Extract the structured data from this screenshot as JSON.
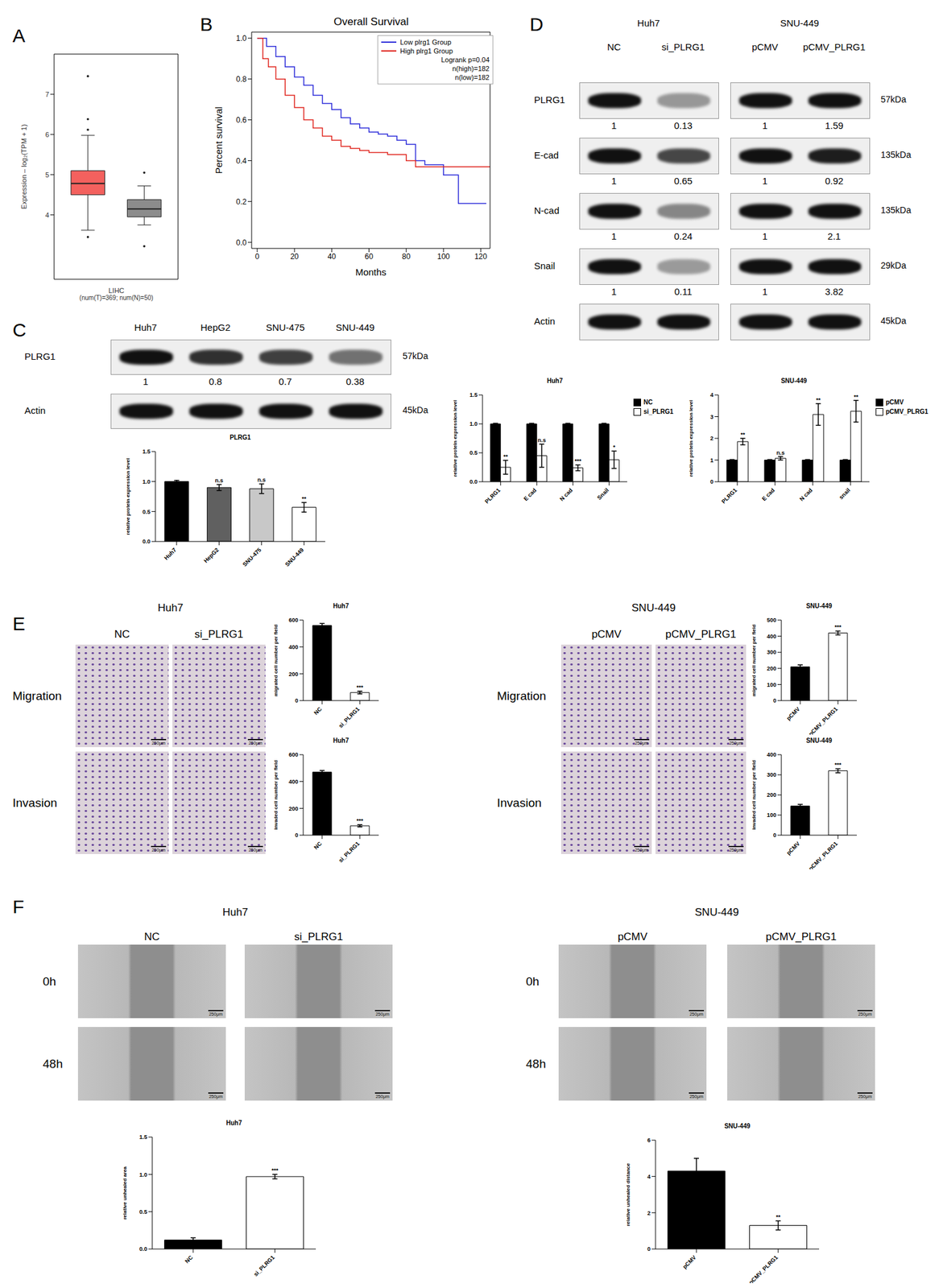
{
  "chart_data": [
    {
      "panel": "A",
      "type": "box",
      "y_label": "Expression – log₂(TPM + 1)",
      "x_label": "LIHC",
      "x_sublabel": "(num(T)=369; num(N)=50)",
      "ylim": [
        2.4,
        8.0
      ],
      "yticks": [
        4,
        5,
        6,
        7
      ],
      "tick_labels": "y",
      "boxes": [
        {
          "color": "#f4615e",
          "q1": 4.5,
          "median": 4.78,
          "q3": 5.1,
          "whisker_low": 3.62,
          "whisker_high": 5.98,
          "outliers": [
            7.45,
            6.38,
            6.12,
            3.45
          ]
        },
        {
          "color": "#8c8c8c",
          "q1": 3.95,
          "median": 4.15,
          "q3": 4.38,
          "whisker_low": 3.75,
          "whisker_high": 4.72,
          "outliers": [
            5.05,
            3.22
          ]
        }
      ]
    },
    {
      "panel": "B",
      "type": "line",
      "line_style": "step",
      "title": "Overall Survival",
      "x_label": "Months",
      "y_label": "Percent survival",
      "xlim": [
        -3,
        125
      ],
      "xticks": [
        0,
        20,
        40,
        60,
        80,
        100,
        120
      ],
      "ylim": [
        -0.03,
        1.03
      ],
      "yticks": [
        {
          "value": 0,
          "label": "0.0"
        },
        {
          "value": 0.2,
          "label": "0.2"
        },
        {
          "value": 0.4,
          "label": "0.4"
        },
        {
          "value": 0.6,
          "label": "0.6"
        },
        {
          "value": 0.8,
          "label": "0.8"
        },
        {
          "value": 1,
          "label": "1.0"
        }
      ],
      "legend": "upper right",
      "annotations": [
        "Logrank p=0.04",
        "n(high)=182",
        "n(low)=182"
      ],
      "series": [
        {
          "name": "Low plrg1 Group",
          "color": "#2b2bd9",
          "x": [
            0,
            5,
            10,
            15,
            20,
            25,
            30,
            35,
            40,
            45,
            50,
            55,
            60,
            65,
            70,
            75,
            80,
            85,
            90,
            100,
            108,
            123
          ],
          "values": [
            1,
            0.96,
            0.91,
            0.86,
            0.81,
            0.77,
            0.72,
            0.68,
            0.65,
            0.61,
            0.58,
            0.56,
            0.54,
            0.53,
            0.52,
            0.5,
            0.48,
            0.4,
            0.38,
            0.33,
            0.19,
            0.19
          ]
        },
        {
          "name": "High plrg1 Group",
          "color": "#e0261f",
          "x": [
            0,
            3,
            6,
            10,
            15,
            20,
            25,
            30,
            35,
            40,
            45,
            50,
            55,
            60,
            70,
            80,
            85,
            125
          ],
          "values": [
            1,
            0.9,
            0.86,
            0.8,
            0.72,
            0.66,
            0.6,
            0.56,
            0.52,
            0.5,
            0.47,
            0.46,
            0.45,
            0.44,
            0.43,
            0.4,
            0.37,
            0.37
          ]
        }
      ]
    },
    {
      "panel": "C",
      "type": "western_blot",
      "groups": [
        {
          "lanes": [
            "Huh7",
            "HepG2",
            "SNU-475",
            "SNU-449"
          ]
        }
      ],
      "rows": [
        {
          "label": "PLRG1",
          "kda": "57kDa",
          "values": [
            [
              1,
              0.8,
              0.7,
              0.38
            ]
          ]
        },
        {
          "label": "Actin",
          "kda": "45kDa"
        }
      ]
    },
    {
      "type": "bar",
      "title": "PLRG1",
      "y_label": "relative protein expression level",
      "categories": [
        "Huh7",
        "HepG2",
        "SNU-475",
        "SNU-449"
      ],
      "values": [
        1.0,
        0.9,
        0.88,
        0.57
      ],
      "errors": [
        0.02,
        0.05,
        0.08,
        0.08
      ],
      "significance": [
        null,
        "n.s",
        "n.s",
        "**"
      ],
      "colors": [
        "#000000",
        "#606060",
        "#c8c8c8",
        "#ffffff"
      ],
      "ylim": [
        0,
        1.5
      ],
      "yticks": [
        {
          "value": 0,
          "label": "0.0"
        },
        {
          "value": 0.5,
          "label": "0.5"
        },
        {
          "value": 1,
          "label": "1.0"
        },
        {
          "value": 1.5,
          "label": "1.5"
        }
      ]
    },
    {
      "panel": "D",
      "type": "western_blot",
      "groups": [
        {
          "title": "Huh7",
          "lanes": [
            "NC",
            "si_PLRG1"
          ]
        },
        {
          "title": "SNU-449",
          "lanes": [
            "pCMV",
            "pCMV_PLRG1"
          ]
        }
      ],
      "rows": [
        {
          "label": "PLRG1",
          "kda": "57kDa",
          "values": [
            [
              1,
              0.13
            ],
            [
              1,
              1.59
            ]
          ]
        },
        {
          "label": "E-cad",
          "kda": "135kDa",
          "values": [
            [
              1,
              0.65
            ],
            [
              1,
              0.92
            ]
          ]
        },
        {
          "label": "N-cad",
          "kda": "135kDa",
          "values": [
            [
              1,
              0.24
            ],
            [
              1,
              2.1
            ]
          ]
        },
        {
          "label": "Snail",
          "kda": "29kDa",
          "values": [
            [
              1,
              0.11
            ],
            [
              1,
              3.82
            ]
          ]
        },
        {
          "label": "Actin",
          "kda": "45kDa"
        }
      ]
    },
    {
      "type": "bar",
      "title": "Huh7",
      "y_label": "relative protein expression level",
      "categories": [
        "PLRG1",
        "E cad",
        "N cad",
        "Snail"
      ],
      "legend": "right",
      "ylim": [
        0,
        1.5
      ],
      "yticks": [
        {
          "value": 0,
          "label": "0.0"
        },
        {
          "value": 0.5,
          "label": "0.5"
        },
        {
          "value": 1,
          "label": "1.0"
        },
        {
          "value": 1.5,
          "label": "1.5"
        }
      ],
      "series": [
        {
          "name": "NC",
          "color": "#000000",
          "values": [
            1,
            1,
            1,
            1
          ],
          "errors": [
            0.01,
            0.01,
            0.01,
            0.01
          ]
        },
        {
          "name": "si_PLRG1",
          "color": "#ffffff",
          "values": [
            0.25,
            0.45,
            0.24,
            0.38
          ],
          "errors": [
            0.12,
            0.2,
            0.05,
            0.15
          ],
          "significance": [
            "**",
            "n.s",
            "***",
            "*"
          ]
        }
      ]
    },
    {
      "type": "bar",
      "title": "SNU-449",
      "y_label": "relative protein expression level",
      "categories": [
        "PLRG1",
        "E cad",
        "N cad",
        "snail"
      ],
      "legend": "right",
      "ylim": [
        0,
        4
      ],
      "yticks": [
        0,
        1,
        2,
        3,
        4
      ],
      "series": [
        {
          "name": "pCMV",
          "color": "#000000",
          "values": [
            1,
            1,
            1,
            1
          ],
          "errors": [
            0.02,
            0.02,
            0.02,
            0.02
          ]
        },
        {
          "name": "pCMV_PLRG1",
          "color": "#ffffff",
          "values": [
            1.85,
            1.08,
            3.1,
            3.25
          ],
          "errors": [
            0.15,
            0.08,
            0.5,
            0.5
          ],
          "significance": [
            "**",
            "n.s",
            "**",
            "**"
          ]
        }
      ]
    },
    {
      "panel": "E",
      "type": "image_grid",
      "title": "Huh7",
      "columns": [
        "NC",
        "si_PLRG1"
      ],
      "rows": [
        "Migration",
        "Invasion"
      ],
      "scale_bar": "250μm"
    },
    {
      "type": "bar",
      "title": "Huh7",
      "y_label": "migrated cell number per field",
      "categories": [
        "NC",
        "si_PLRG1"
      ],
      "colors": [
        "#000000",
        "#ffffff"
      ],
      "values": [
        560,
        60
      ],
      "errors": [
        15,
        10
      ],
      "significance": [
        null,
        "***"
      ],
      "ylim": [
        0,
        600
      ],
      "yticks": [
        0,
        200,
        400,
        600
      ]
    },
    {
      "type": "bar",
      "title": "Huh7",
      "y_label": "invaded cell number per field",
      "categories": [
        "NC",
        "si_PLRG1"
      ],
      "colors": [
        "#000000",
        "#ffffff"
      ],
      "values": [
        470,
        70
      ],
      "errors": [
        12,
        8
      ],
      "significance": [
        null,
        "***"
      ],
      "ylim": [
        0,
        600
      ],
      "yticks": [
        0,
        200,
        400,
        600
      ]
    },
    {
      "type": "image_grid",
      "title": "SNU-449",
      "columns": [
        "pCMV",
        "pCMV_PLRG1"
      ],
      "rows": [
        "Migration",
        "Invasion"
      ],
      "scale_bar": "250μm"
    },
    {
      "type": "bar",
      "title": "SNU-449",
      "y_label": "migrated cell number per field",
      "categories": [
        "pCMV",
        "pCMV_PLRG1"
      ],
      "colors": [
        "#000000",
        "#ffffff"
      ],
      "values": [
        210,
        420
      ],
      "errors": [
        12,
        12
      ],
      "significance": [
        null,
        "***"
      ],
      "ylim": [
        0,
        500
      ],
      "yticks": [
        0,
        100,
        200,
        300,
        400,
        500
      ]
    },
    {
      "type": "bar",
      "title": "SNU-449",
      "y_label": "invaded cell number per field",
      "categories": [
        "pCMV",
        "pCMV_PLRG1"
      ],
      "colors": [
        "#000000",
        "#ffffff"
      ],
      "values": [
        145,
        320
      ],
      "errors": [
        8,
        10
      ],
      "significance": [
        null,
        "***"
      ],
      "ylim": [
        0,
        400
      ],
      "yticks": [
        0,
        100,
        200,
        300,
        400
      ]
    },
    {
      "panel": "F",
      "type": "image_grid",
      "title": "Huh7",
      "columns": [
        "NC",
        "si_PLRG1"
      ],
      "rows": [
        "0h",
        "48h"
      ],
      "scale_bar": "250μm"
    },
    {
      "type": "bar",
      "title": "Huh7",
      "y_label": "relative unhealed area",
      "categories": [
        "NC",
        "si_PLRG1"
      ],
      "colors": [
        "#000000",
        "#ffffff"
      ],
      "values": [
        0.12,
        0.97
      ],
      "errors": [
        0.03,
        0.03
      ],
      "significance": [
        null,
        "***"
      ],
      "ylim": [
        0,
        1.5
      ],
      "yticks": [
        {
          "value": 0,
          "label": "0.0"
        },
        {
          "value": 0.5,
          "label": "0.5"
        },
        {
          "value": 1,
          "label": "1.0"
        },
        {
          "value": 1.5,
          "label": "1.5"
        }
      ]
    },
    {
      "type": "image_grid",
      "title": "SNU-449",
      "columns": [
        "pCMV",
        "pCMV_PLRG1"
      ],
      "rows": [
        "0h",
        "48h"
      ],
      "scale_bar": "250μm"
    },
    {
      "type": "bar",
      "title": "SNU-449",
      "y_label": "relative unhealed distance",
      "categories": [
        "pCMV",
        "pCMV_PLRG1"
      ],
      "colors": [
        "#000000",
        "#ffffff"
      ],
      "values": [
        4.3,
        1.3
      ],
      "errors": [
        0.7,
        0.25
      ],
      "significance": [
        null,
        "**"
      ],
      "ylim": [
        0,
        6
      ],
      "yticks": [
        0,
        2,
        4,
        6
      ]
    }
  ]
}
